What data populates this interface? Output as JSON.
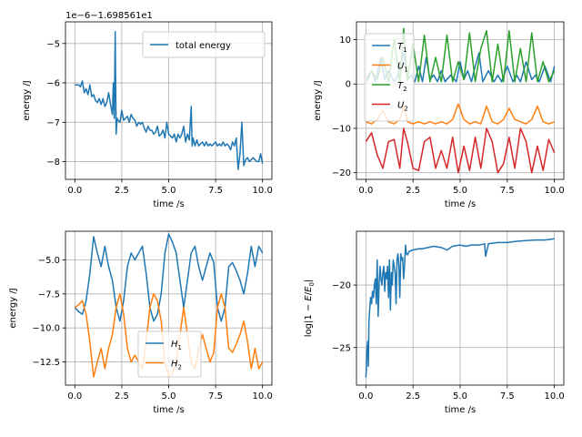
{
  "chart_data": [
    {
      "type": "line",
      "xlabel": "time /s",
      "ylabel": "energy /J",
      "offset_text": "1e−6−1.698561e1",
      "xlim": [
        -0.5,
        10.5
      ],
      "ylim": [
        -8.45,
        -4.45
      ],
      "xticks": [
        0,
        2.5,
        5,
        7.5,
        10
      ],
      "xtick_labels": [
        "0.0",
        "2.5",
        "5.0",
        "7.5",
        "10.0"
      ],
      "yticks": [
        -8,
        -7,
        -6,
        -5
      ],
      "ytick_labels": [
        "−8",
        "−7",
        "−6",
        "−5"
      ],
      "grid": true,
      "legend_loc": "upper right",
      "series": [
        {
          "name": "total energy",
          "color": "#1f77b4",
          "x": [
            0,
            0.2,
            0.3,
            0.4,
            0.5,
            0.6,
            0.7,
            0.8,
            0.9,
            1.0,
            1.1,
            1.2,
            1.3,
            1.4,
            1.5,
            1.6,
            1.7,
            1.8,
            1.9,
            2.0,
            2.05,
            2.1,
            2.15,
            2.2,
            2.25,
            2.3,
            2.4,
            2.5,
            2.6,
            2.7,
            2.8,
            2.9,
            3.0,
            3.1,
            3.2,
            3.3,
            3.4,
            3.5,
            3.6,
            3.7,
            3.8,
            3.9,
            4.0,
            4.1,
            4.2,
            4.3,
            4.4,
            4.5,
            4.6,
            4.7,
            4.8,
            4.9,
            5.0,
            5.1,
            5.2,
            5.3,
            5.4,
            5.5,
            5.6,
            5.7,
            5.8,
            5.9,
            6.0,
            6.1,
            6.2,
            6.25,
            6.3,
            6.4,
            6.5,
            6.6,
            6.7,
            6.8,
            6.9,
            7.0,
            7.1,
            7.2,
            7.3,
            7.4,
            7.5,
            7.6,
            7.7,
            7.8,
            7.9,
            8.0,
            8.1,
            8.2,
            8.3,
            8.4,
            8.5,
            8.6,
            8.7,
            8.8,
            8.9,
            9.0,
            9.1,
            9.2,
            9.3,
            9.4,
            9.5,
            9.6,
            9.7,
            9.8,
            9.9,
            10.0
          ],
          "y": [
            -6.05,
            -6.05,
            -6.1,
            -5.95,
            -6.25,
            -6.15,
            -6.3,
            -6.05,
            -6.35,
            -6.3,
            -6.45,
            -6.5,
            -6.4,
            -6.55,
            -6.4,
            -6.6,
            -6.5,
            -6.25,
            -6.55,
            -6.8,
            -6.0,
            -6.9,
            -4.7,
            -7.3,
            -6.9,
            -6.95,
            -7.0,
            -6.7,
            -6.95,
            -6.9,
            -6.85,
            -7.0,
            -6.8,
            -6.9,
            -6.95,
            -7.1,
            -7.0,
            -7.05,
            -7.0,
            -7.15,
            -7.25,
            -7.1,
            -7.2,
            -7.2,
            -7.3,
            -7.25,
            -7.1,
            -7.35,
            -7.3,
            -7.2,
            -7.4,
            -7.0,
            -7.3,
            -7.35,
            -7.4,
            -7.3,
            -7.5,
            -7.3,
            -7.4,
            -7.3,
            -7.1,
            -7.5,
            -7.3,
            -7.45,
            -6.6,
            -7.6,
            -7.4,
            -7.6,
            -7.45,
            -7.6,
            -7.55,
            -7.5,
            -7.6,
            -7.5,
            -7.6,
            -7.55,
            -7.6,
            -7.55,
            -7.5,
            -7.6,
            -7.55,
            -7.6,
            -7.5,
            -7.6,
            -7.55,
            -7.6,
            -7.7,
            -7.5,
            -7.6,
            -7.4,
            -8.2,
            -7.8,
            -7.0,
            -8.1,
            -7.95,
            -7.9,
            -8.0,
            -7.95,
            -7.9,
            -7.95,
            -8.0,
            -8.0,
            -7.8,
            -8.05
          ]
        }
      ]
    },
    {
      "type": "line",
      "xlabel": "time /s",
      "ylabel": "energy /J",
      "xlim": [
        -0.5,
        10.5
      ],
      "ylim": [
        -21.5,
        14.0
      ],
      "xticks": [
        0,
        2.5,
        5,
        7.5,
        10
      ],
      "xtick_labels": [
        "0.0",
        "2.5",
        "5.0",
        "7.5",
        "10.0"
      ],
      "yticks": [
        -20,
        -10,
        0,
        10
      ],
      "ytick_labels": [
        "−20",
        "−10",
        "0",
        "10"
      ],
      "grid": true,
      "legend_loc": "upper left",
      "series": [
        {
          "name": "T1",
          "color": "#1f77b4",
          "x": [
            0,
            0.3,
            0.5,
            0.8,
            1.0,
            1.2,
            1.5,
            1.7,
            2.0,
            2.2,
            2.4,
            2.6,
            2.8,
            3.0,
            3.2,
            3.4,
            3.6,
            3.8,
            4.0,
            4.2,
            4.5,
            4.8,
            5.0,
            5.2,
            5.4,
            5.6,
            5.8,
            6.0,
            6.2,
            6.5,
            6.8,
            7.0,
            7.2,
            7.5,
            7.8,
            8.0,
            8.2,
            8.5,
            8.8,
            9.0,
            9.2,
            9.5,
            9.8,
            10.0
          ],
          "x_note": "",
          "y": [
            1,
            3,
            0.5,
            6,
            1,
            3,
            0.5,
            2,
            7,
            1,
            2,
            0.5,
            4,
            0.5,
            6,
            1,
            2,
            0.5,
            3,
            0.5,
            2,
            0.5,
            5,
            1,
            3,
            0.5,
            4,
            7,
            0.5,
            3,
            0.5,
            2,
            0.5,
            4,
            0.5,
            2,
            0.5,
            5,
            1,
            2,
            0.5,
            4,
            0.5,
            4
          ]
        },
        {
          "name": "U1",
          "color": "#ff7f0e",
          "x": [
            0,
            0.3,
            0.6,
            0.9,
            1.2,
            1.5,
            1.8,
            2.0,
            2.2,
            2.5,
            2.8,
            3.1,
            3.4,
            3.7,
            4.0,
            4.3,
            4.6,
            4.9,
            5.2,
            5.5,
            5.8,
            6.1,
            6.4,
            6.7,
            7.0,
            7.3,
            7.6,
            7.9,
            8.2,
            8.5,
            8.8,
            9.1,
            9.4,
            9.7,
            10.0
          ],
          "y": [
            -8.5,
            -9,
            -8,
            -6,
            -8.5,
            -9,
            -8,
            -5,
            -8.5,
            -9,
            -8.5,
            -9,
            -8.5,
            -9,
            -8.5,
            -9,
            -8,
            -4.5,
            -8,
            -9,
            -8.5,
            -9,
            -5,
            -8.5,
            -9,
            -8,
            -5.5,
            -8,
            -8.5,
            -9,
            -8,
            -5,
            -8.5,
            -9,
            -8.5
          ]
        },
        {
          "name": "T2",
          "color": "#2ca02c",
          "x": [
            0,
            0.3,
            0.6,
            0.9,
            1.2,
            1.5,
            1.8,
            2.0,
            2.2,
            2.5,
            2.8,
            3.1,
            3.4,
            3.7,
            4.0,
            4.3,
            4.6,
            4.9,
            5.2,
            5.5,
            5.8,
            6.1,
            6.4,
            6.7,
            7.0,
            7.3,
            7.6,
            7.9,
            8.2,
            8.5,
            8.8,
            9.1,
            9.4,
            9.7,
            10.0
          ],
          "y": [
            0,
            3,
            1,
            6,
            0.5,
            10,
            0.5,
            12.5,
            1,
            9,
            0.5,
            11,
            0.5,
            6,
            0.5,
            11,
            0.5,
            5,
            1,
            11.5,
            0.5,
            8,
            12,
            0.5,
            9,
            0.5,
            12,
            0.5,
            8,
            0.5,
            11.5,
            0.5,
            5,
            0.5,
            3
          ]
        },
        {
          "name": "U2",
          "color": "#d62728",
          "x": [
            0,
            0.3,
            0.6,
            0.9,
            1.2,
            1.5,
            1.8,
            2.0,
            2.2,
            2.5,
            2.8,
            3.1,
            3.4,
            3.7,
            4.0,
            4.3,
            4.6,
            4.9,
            5.2,
            5.5,
            5.8,
            6.1,
            6.4,
            6.7,
            7.0,
            7.3,
            7.6,
            7.9,
            8.2,
            8.5,
            8.8,
            9.1,
            9.4,
            9.7,
            10.0
          ],
          "y": [
            -13,
            -11,
            -16,
            -19,
            -13,
            -12.5,
            -19,
            -10,
            -13,
            -19,
            -19.5,
            -13,
            -12,
            -19,
            -15,
            -19,
            -12,
            -20,
            -14,
            -19.5,
            -12,
            -19,
            -10,
            -13,
            -20,
            -18,
            -12,
            -19,
            -10,
            -13,
            -20,
            -14,
            -19.5,
            -12.5,
            -15.5
          ]
        }
      ]
    },
    {
      "type": "line",
      "xlabel": "time /s",
      "ylabel": "energy /J",
      "xlim": [
        -0.5,
        10.5
      ],
      "ylim": [
        -14.2,
        -2.9
      ],
      "xticks": [
        0,
        2.5,
        5,
        7.5,
        10
      ],
      "xtick_labels": [
        "0.0",
        "2.5",
        "5.0",
        "7.5",
        "10.0"
      ],
      "yticks": [
        -12.5,
        -10,
        -7.5,
        -5
      ],
      "ytick_labels": [
        "−12.5",
        "−10.0",
        "−7.5",
        "−5.0"
      ],
      "grid": true,
      "legend_loc": "lower center",
      "series": [
        {
          "name": "H1",
          "color": "#1f77b4",
          "x": [
            0,
            0.2,
            0.4,
            0.6,
            0.8,
            1.0,
            1.2,
            1.4,
            1.6,
            1.8,
            2.0,
            2.2,
            2.4,
            2.6,
            2.8,
            3.0,
            3.2,
            3.4,
            3.6,
            3.8,
            4.0,
            4.2,
            4.4,
            4.6,
            4.8,
            5.0,
            5.2,
            5.4,
            5.6,
            5.8,
            6.0,
            6.2,
            6.4,
            6.6,
            6.8,
            7.0,
            7.2,
            7.4,
            7.6,
            7.8,
            8.0,
            8.2,
            8.4,
            8.6,
            8.8,
            9.0,
            9.2,
            9.4,
            9.6,
            9.8,
            10.0
          ],
          "y": [
            -8.5,
            -8.8,
            -9,
            -8,
            -6,
            -3.3,
            -4.5,
            -5.5,
            -4.0,
            -5.5,
            -6.5,
            -8.5,
            -9.5,
            -8,
            -5.5,
            -4.5,
            -5.0,
            -4.5,
            -4.0,
            -6,
            -8.5,
            -9.5,
            -9.0,
            -7.5,
            -4.5,
            -3.1,
            -3.7,
            -4.5,
            -6.5,
            -8.5,
            -6.5,
            -4.5,
            -4.0,
            -5.5,
            -6.5,
            -5.5,
            -4.5,
            -5.2,
            -8.5,
            -9.5,
            -8.5,
            -5.5,
            -5.2,
            -5.8,
            -6.5,
            -7.5,
            -6.0,
            -4.0,
            -5.5,
            -4.0,
            -4.5
          ]
        },
        {
          "name": "H2",
          "color": "#ff7f0e",
          "x": [
            0,
            0.2,
            0.4,
            0.6,
            0.8,
            1.0,
            1.2,
            1.4,
            1.6,
            1.8,
            2.0,
            2.2,
            2.4,
            2.6,
            2.8,
            3.0,
            3.2,
            3.4,
            3.6,
            3.8,
            4.0,
            4.2,
            4.4,
            4.6,
            4.8,
            5.0,
            5.2,
            5.4,
            5.6,
            5.8,
            6.0,
            6.2,
            6.4,
            6.6,
            6.8,
            7.0,
            7.2,
            7.4,
            7.6,
            7.8,
            8.0,
            8.2,
            8.4,
            8.6,
            8.8,
            9.0,
            9.2,
            9.4,
            9.6,
            9.8,
            10.0
          ],
          "y": [
            -8.5,
            -8.3,
            -8.0,
            -9,
            -11,
            -13.6,
            -12.5,
            -11.5,
            -13.0,
            -11.5,
            -10.5,
            -8.5,
            -7.5,
            -9,
            -11.5,
            -12.5,
            -12,
            -12.5,
            -13,
            -11,
            -8.5,
            -7.5,
            -8,
            -9.5,
            -12.5,
            -13.6,
            -13.3,
            -12.5,
            -10.5,
            -8.5,
            -10.5,
            -12.5,
            -13,
            -11.5,
            -10.5,
            -11.5,
            -12.5,
            -11.8,
            -8.5,
            -7.5,
            -8.5,
            -11.5,
            -11.8,
            -11.2,
            -10.5,
            -9.5,
            -11,
            -13,
            -11.5,
            -13,
            -12.5
          ]
        }
      ]
    },
    {
      "type": "line",
      "xlabel": "time /s",
      "ylabel": "log|1 − E/E0|",
      "xlim": [
        -0.5,
        10.5
      ],
      "ylim": [
        -28.0,
        -15.7
      ],
      "xticks": [
        0,
        2.5,
        5,
        7.5,
        10
      ],
      "xtick_labels": [
        "0.0",
        "2.5",
        "5.0",
        "7.5",
        "10.0"
      ],
      "yticks": [
        -25,
        -20
      ],
      "ytick_labels": [
        "−25",
        "−20"
      ],
      "grid": true,
      "series": [
        {
          "name": "",
          "color": "#1f77b4",
          "x": [
            0,
            0.03,
            0.06,
            0.1,
            0.13,
            0.16,
            0.2,
            0.25,
            0.3,
            0.35,
            0.4,
            0.45,
            0.5,
            0.55,
            0.6,
            0.65,
            0.7,
            0.75,
            0.8,
            0.85,
            0.9,
            0.95,
            1.0,
            1.05,
            1.1,
            1.15,
            1.2,
            1.25,
            1.3,
            1.35,
            1.4,
            1.45,
            1.5,
            1.55,
            1.6,
            1.65,
            1.7,
            1.75,
            1.8,
            1.85,
            1.9,
            1.95,
            2.0,
            2.05,
            2.1,
            2.15,
            2.2,
            2.3,
            2.5,
            2.8,
            3.0,
            3.3,
            3.6,
            4.0,
            4.3,
            4.6,
            5.0,
            5.3,
            5.6,
            6.0,
            6.2,
            6.3,
            6.35,
            6.5,
            7.0,
            7.5,
            8.0,
            8.5,
            9.0,
            9.5,
            10.0
          ],
          "y": [
            -27.4,
            -26.5,
            -25.0,
            -24.5,
            -26.5,
            -23.0,
            -22.0,
            -21.0,
            -21.5,
            -20.5,
            -21.0,
            -20.0,
            -19.5,
            -21.5,
            -18.0,
            -22.5,
            -20.0,
            -18.5,
            -19.5,
            -20.0,
            -19.0,
            -18.5,
            -20.5,
            -19.0,
            -19.5,
            -18.5,
            -21.0,
            -18.0,
            -22.0,
            -19.0,
            -20.0,
            -18.0,
            -18.5,
            -19.0,
            -21.5,
            -18.0,
            -17.5,
            -18.5,
            -21.0,
            -17.5,
            -18.0,
            -17.8,
            -19.5,
            -18.5,
            -16.8,
            -17.5,
            -17.6,
            -17.3,
            -17.2,
            -17.1,
            -17.1,
            -17.0,
            -16.9,
            -17.0,
            -17.2,
            -16.9,
            -16.8,
            -16.9,
            -16.8,
            -16.8,
            -16.75,
            -16.7,
            -17.7,
            -16.7,
            -16.6,
            -16.6,
            -16.5,
            -16.45,
            -16.4,
            -16.4,
            -16.3
          ]
        }
      ]
    }
  ]
}
